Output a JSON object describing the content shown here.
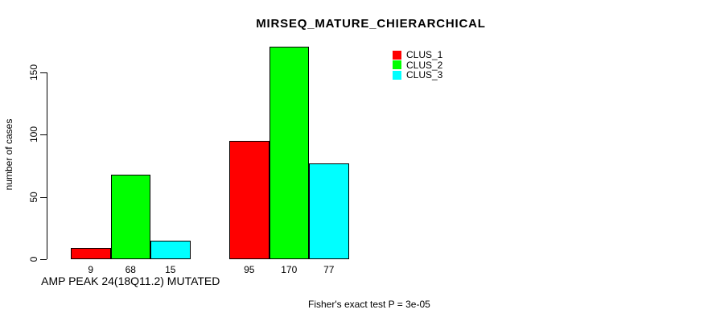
{
  "chart_data": {
    "type": "bar",
    "title": "MIRSEQ_MATURE_CHIERARCHICAL",
    "ylabel": "number of cases",
    "xlabel": "",
    "categories": [
      "AMP PEAK 24(18Q11.2) MUTATED",
      ""
    ],
    "series": [
      {
        "name": "CLUS_1",
        "color": "#ff0000",
        "values": [
          9,
          95
        ]
      },
      {
        "name": "CLUS_2",
        "color": "#00ff00",
        "values": [
          68,
          170
        ]
      },
      {
        "name": "CLUS_3",
        "color": "#00ffff",
        "values": [
          15,
          77
        ]
      }
    ],
    "bar_value_labels": [
      [
        "9",
        "68",
        "15"
      ],
      [
        "95",
        "170",
        "77"
      ]
    ],
    "yticks": [
      0,
      50,
      100,
      150
    ],
    "ylim": [
      0,
      177
    ],
    "grid": false,
    "legend": {
      "position": "top-right",
      "entries": [
        "CLUS_1",
        "CLUS_2",
        "CLUS_3"
      ]
    },
    "annotation": "Fisher's exact test P = 3e-05",
    "colors": {
      "background": "#ffffff",
      "axis": "#000000",
      "bar_border": "#000000",
      "text": "#000000"
    }
  }
}
